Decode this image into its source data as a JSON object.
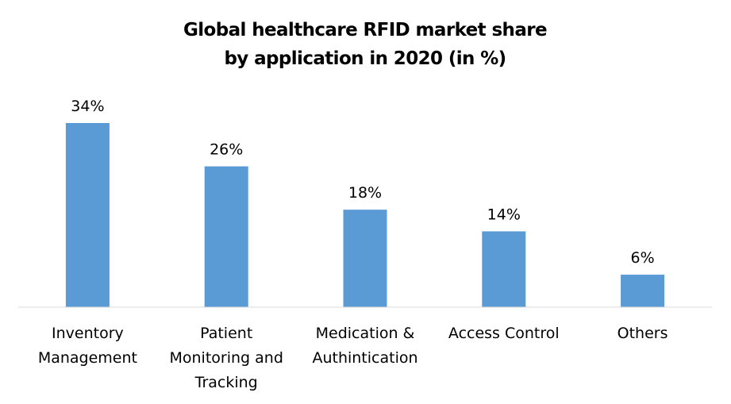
{
  "chart_data": {
    "type": "bar",
    "title": [
      "Global healthcare RFID market share",
      "by application in 2020 (in %)"
    ],
    "xlabel": "",
    "ylabel": "",
    "categories": [
      [
        "Inventory",
        "Management"
      ],
      [
        "Patient",
        "Monitoring and",
        "Tracking"
      ],
      [
        "Medication &",
        "Authintication"
      ],
      [
        "Access Control"
      ],
      [
        "Others"
      ]
    ],
    "values": [
      34,
      26,
      18,
      14,
      6
    ],
    "data_labels": [
      "34%",
      "26%",
      "18%",
      "14%",
      "6%"
    ],
    "unit": "%",
    "ylim": [
      0,
      34
    ],
    "grid": false,
    "legend": "none",
    "colors": {
      "bar": "#5b9bd5",
      "axis": "#d9d9d9",
      "text": "#000000"
    }
  }
}
